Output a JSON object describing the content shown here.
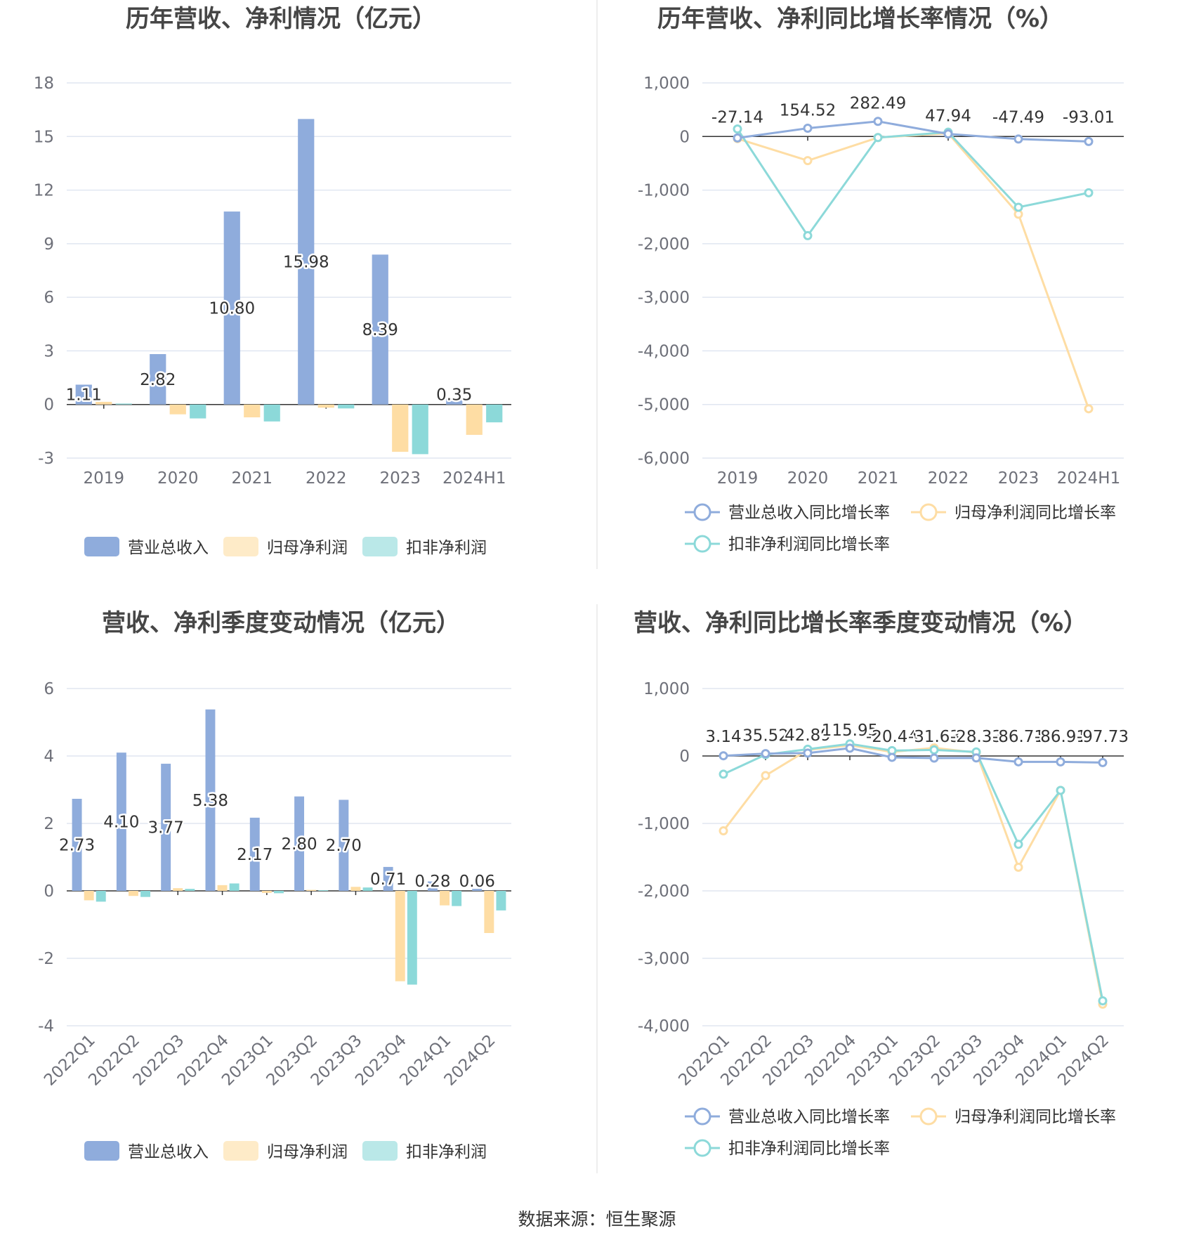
{
  "source": "数据来源：恒生聚源",
  "legend_bar": [
    "营业总收入",
    "归母净利润",
    "扣非净利润"
  ],
  "legend_line": [
    "营业总收入同比增长率",
    "归母净利润同比增长率",
    "扣非净利润同比增长率"
  ],
  "colors": {
    "revenue": "#8facdc",
    "net_profit": "#fedda4",
    "deducted": "#8cd9d9",
    "grid": "#e0e6f1",
    "axis": "#333333"
  },
  "chart_data": [
    {
      "id": "annual_amount",
      "type": "bar",
      "title": "历年营收、净利情况（亿元）",
      "categories": [
        "2019",
        "2020",
        "2021",
        "2022",
        "2023",
        "2024H1"
      ],
      "ylim": [
        -3,
        18
      ],
      "yticks": [
        -3,
        0,
        3,
        6,
        9,
        12,
        15,
        18
      ],
      "series": [
        {
          "name": "营业总收入",
          "values": [
            1.11,
            2.82,
            10.8,
            15.98,
            8.39,
            0.35
          ],
          "labels": [
            "1.11",
            "2.82",
            "10.80",
            "15.98",
            "8.39",
            "0.35"
          ]
        },
        {
          "name": "归母净利润",
          "values": [
            0.15,
            -0.55,
            -0.72,
            -0.18,
            -2.65,
            -1.7
          ]
        },
        {
          "name": "扣非净利润",
          "values": [
            0.05,
            -0.78,
            -0.95,
            -0.22,
            -2.78,
            -1.0
          ]
        }
      ]
    },
    {
      "id": "annual_growth",
      "type": "line",
      "title": "历年营收、净利同比增长率情况（%）",
      "categories": [
        "2019",
        "2020",
        "2021",
        "2022",
        "2023",
        "2024H1"
      ],
      "ylim": [
        -6000,
        1000
      ],
      "yticks": [
        -6000,
        -5000,
        -4000,
        -3000,
        -2000,
        -1000,
        0,
        1000
      ],
      "ytick_labels": [
        "-6,000",
        "-5,000",
        "-4,000",
        "-3,000",
        "-2,000",
        "-1,000",
        "0",
        "1,000"
      ],
      "series": [
        {
          "name": "营业总收入同比增长率",
          "values": [
            -27.14,
            154.52,
            282.49,
            47.94,
            -47.49,
            -93.01
          ],
          "labels": [
            "-27.14",
            "154.52",
            "282.49",
            "47.94",
            "-47.49",
            "-93.01"
          ]
        },
        {
          "name": "归母净利润同比增长率",
          "values": [
            -40,
            -450,
            -20,
            60,
            -1450,
            -5080
          ]
        },
        {
          "name": "扣非净利润同比增长率",
          "values": [
            140,
            -1850,
            -20,
            80,
            -1320,
            -1050
          ]
        }
      ]
    },
    {
      "id": "quarterly_amount",
      "type": "bar",
      "title": "营收、净利季度变动情况（亿元）",
      "categories": [
        "2022Q1",
        "2022Q2",
        "2022Q3",
        "2022Q4",
        "2023Q1",
        "2023Q2",
        "2023Q3",
        "2023Q4",
        "2024Q1",
        "2024Q2"
      ],
      "ylim": [
        -4,
        6
      ],
      "yticks": [
        -4,
        -2,
        0,
        2,
        4,
        6
      ],
      "series": [
        {
          "name": "营业总收入",
          "values": [
            2.73,
            4.1,
            3.77,
            5.38,
            2.17,
            2.8,
            2.7,
            0.71,
            0.28,
            0.06
          ],
          "labels": [
            "2.73",
            "4.10",
            "3.77",
            "5.38",
            "2.17",
            "2.80",
            "2.70",
            "0.71",
            "0.28",
            "0.06"
          ]
        },
        {
          "name": "归母净利润",
          "values": [
            -0.28,
            -0.15,
            0.08,
            0.17,
            -0.06,
            0.03,
            0.12,
            -2.68,
            -0.43,
            -1.25
          ]
        },
        {
          "name": "扣非净利润",
          "values": [
            -0.32,
            -0.18,
            0.06,
            0.22,
            -0.07,
            0.02,
            0.1,
            -2.78,
            -0.45,
            -0.58
          ]
        }
      ]
    },
    {
      "id": "quarterly_growth",
      "type": "line",
      "title": "营收、净利同比增长率季度变动情况（%）",
      "categories": [
        "2022Q1",
        "2022Q2",
        "2022Q3",
        "2022Q4",
        "2023Q1",
        "2023Q2",
        "2023Q3",
        "2023Q4",
        "2024Q1",
        "2024Q2"
      ],
      "ylim": [
        -4000,
        1000
      ],
      "yticks": [
        -4000,
        -3000,
        -2000,
        -1000,
        0,
        1000
      ],
      "ytick_labels": [
        "-4,000",
        "-3,000",
        "-2,000",
        "-1,000",
        "0",
        "1,000"
      ],
      "series": [
        {
          "name": "营业总收入同比增长率",
          "values": [
            3.14,
            35.52,
            42.89,
            115.95,
            -20.44,
            -31.63,
            -28.33,
            -86.71,
            -86.91,
            -97.73
          ],
          "labels": [
            "3.14",
            "35.52",
            "42.89",
            "115.95",
            "-20.44",
            "-31.63",
            "-28.33",
            "-86.71",
            "-86.91",
            "-97.73"
          ]
        },
        {
          "name": "归母净利润同比增长率",
          "values": [
            -1110,
            -290,
            90,
            160,
            60,
            120,
            50,
            -1650,
            -510,
            -3680
          ]
        },
        {
          "name": "扣非净利润同比增长率",
          "values": [
            -270,
            20,
            100,
            180,
            80,
            90,
            60,
            -1310,
            -510,
            -3630
          ]
        }
      ]
    }
  ]
}
